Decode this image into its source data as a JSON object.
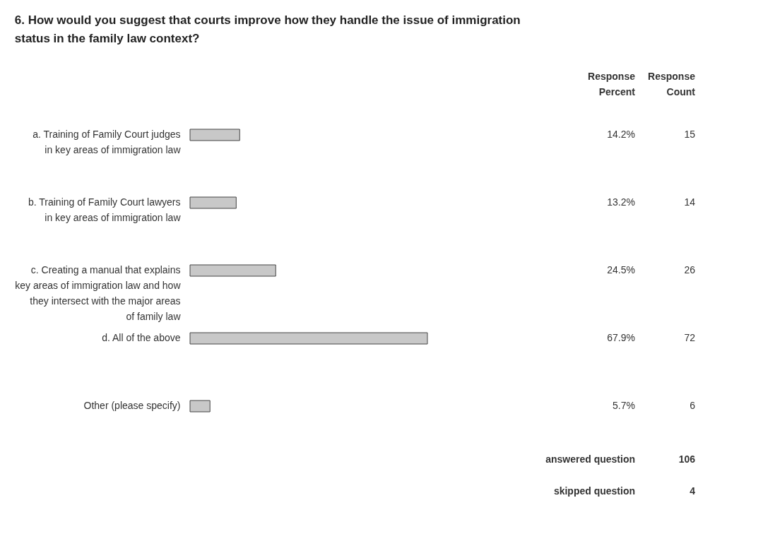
{
  "chart_data": {
    "type": "bar",
    "orientation": "horizontal",
    "title": "6. How would you suggest that courts improve how they handle the issue of immigration status in the family law context?",
    "categories": [
      "a. Training of Family Court judges in key areas of immigration law",
      "b. Training of Family Court lawyers in key areas of immigration law",
      "c. Creating a manual that explains key areas of immigration law and how they intersect with the major areas of family law",
      "d. All of the above",
      "Other (please specify)"
    ],
    "values": [
      14.2,
      13.2,
      24.5,
      67.9,
      5.7
    ],
    "value_labels": [
      "14.2%",
      "13.2%",
      "24.5%",
      "67.9%",
      "5.7%"
    ],
    "color": "#c8c8c8",
    "annotations": [
      "Response Percent",
      "Response Count",
      "15",
      "14",
      "26",
      "72",
      "6",
      "answered question",
      "106",
      "skipped question",
      "4"
    ]
  }
}
